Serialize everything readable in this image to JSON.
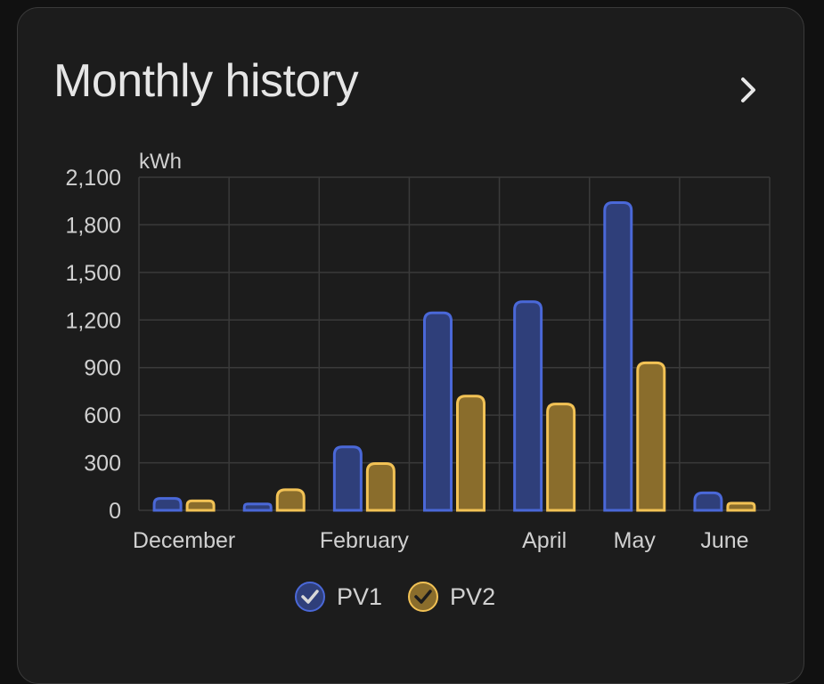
{
  "card": {
    "title": "Monthly history"
  },
  "icons": {
    "more": "chevron-right-icon",
    "legend_check": "check-icon"
  },
  "colors": {
    "pv1_fill": "#2f3f7a",
    "pv1_stroke": "#4a68d8",
    "pv2_fill": "#8a6d2c",
    "pv2_stroke": "#f2c255",
    "grid": "#3a3a3a",
    "text": "#d0d0d0"
  },
  "chart_data": {
    "type": "bar",
    "unit_label": "kWh",
    "ylim": [
      0,
      2100
    ],
    "yticks": [
      "0",
      "300",
      "600",
      "900",
      "1,200",
      "1,500",
      "1,800",
      "2,100"
    ],
    "ytick_values": [
      0,
      300,
      600,
      900,
      1200,
      1500,
      1800,
      2100
    ],
    "xtick_labels": [
      {
        "label": "December",
        "month_index": 0
      },
      {
        "label": "February",
        "month_index": 2
      },
      {
        "label": "April",
        "month_index": 4
      },
      {
        "label": "May",
        "month_index": 5
      },
      {
        "label": "June",
        "month_index": 6
      }
    ],
    "series": [
      {
        "name": "PV1",
        "values": [
          75,
          40,
          400,
          1245,
          1315,
          1940,
          110
        ]
      },
      {
        "name": "PV2",
        "values": [
          60,
          130,
          295,
          720,
          670,
          930,
          45
        ]
      }
    ],
    "grid": true,
    "legend_position": "bottom"
  }
}
